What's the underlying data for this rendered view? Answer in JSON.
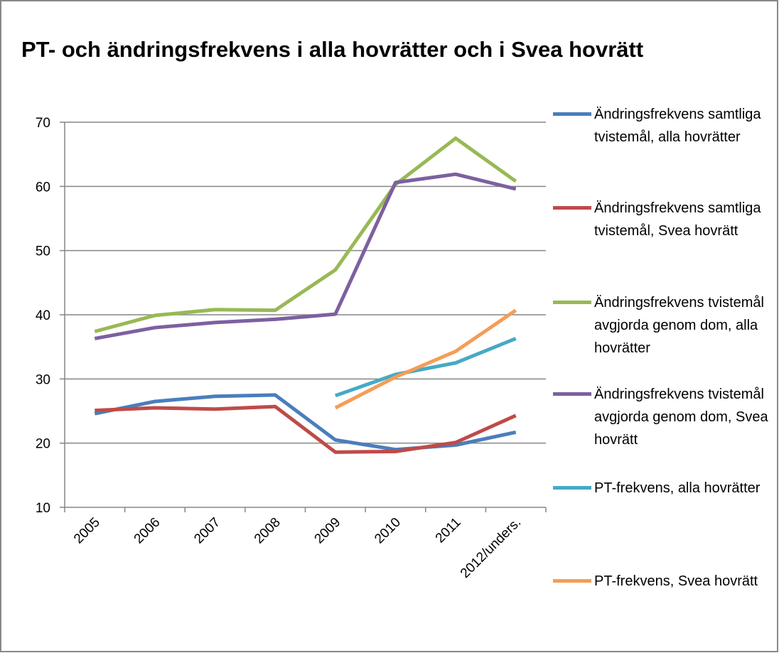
{
  "chart_data": {
    "type": "line",
    "title": "PT- och ändringsfrekvens i alla hovrätter och i Svea hovrätt",
    "categories": [
      "2005",
      "2006",
      "2007",
      "2008",
      "2009",
      "2010",
      "2011",
      "2012/unders."
    ],
    "series": [
      {
        "name": "Ändringsfrekvens samtliga tvistemål, alla hovrätter",
        "color": "#4a7ebb",
        "values": [
          24.6,
          26.5,
          27.3,
          27.5,
          20.5,
          19.0,
          19.7,
          21.7
        ]
      },
      {
        "name": "Ändringsfrekvens samtliga tvistemål, Svea hovrätt",
        "color": "#be4b48",
        "values": [
          25.1,
          25.5,
          25.3,
          25.7,
          18.6,
          18.7,
          20.1,
          24.3
        ]
      },
      {
        "name": "Ändringsfrekvens tvistemål avgjorda genom dom, alla hovrätter",
        "color": "#98b954",
        "values": [
          37.4,
          39.9,
          40.8,
          40.7,
          47.0,
          60.3,
          67.5,
          60.8
        ]
      },
      {
        "name": "Ändringsfrekvens tvistemål avgjorda genom dom, Svea hovrätt",
        "color": "#7d60a0",
        "values": [
          36.3,
          38.0,
          38.8,
          39.3,
          40.1,
          60.6,
          61.9,
          59.6
        ]
      },
      {
        "name": "PT-frekvens, alla hovrätter",
        "color": "#46aac5",
        "values": [
          null,
          null,
          null,
          null,
          27.4,
          30.7,
          32.5,
          36.3
        ]
      },
      {
        "name": "PT-frekvens, Svea hovrätt",
        "color": "#f59d56",
        "values": [
          null,
          null,
          null,
          null,
          25.5,
          30.3,
          34.3,
          40.7
        ]
      }
    ],
    "ylim": [
      10,
      70
    ],
    "yticks": [
      10,
      20,
      30,
      40,
      50,
      60,
      70
    ],
    "grid": true,
    "legend": "right"
  }
}
